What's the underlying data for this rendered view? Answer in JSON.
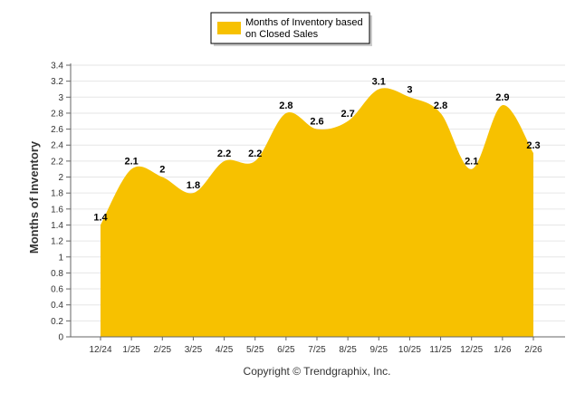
{
  "chart_data": {
    "type": "area",
    "title": "",
    "ylabel": "Months of Inventory",
    "xlabel": "",
    "categories": [
      "12/24",
      "1/25",
      "2/25",
      "3/25",
      "4/25",
      "5/25",
      "6/25",
      "7/25",
      "8/25",
      "9/25",
      "10/25",
      "11/25",
      "12/25",
      "1/26",
      "2/26"
    ],
    "series": [
      {
        "name": "Months of Inventory based on Closed Sales",
        "values": [
          1.4,
          2.1,
          2.0,
          1.8,
          2.2,
          2.2,
          2.8,
          2.6,
          2.7,
          3.1,
          3.0,
          2.8,
          2.1,
          2.9,
          2.3
        ],
        "labels": [
          "1.4",
          "2.1",
          "2",
          "1.8",
          "2.2",
          "2.2",
          "2.8",
          "2.6",
          "2.7",
          "3.1",
          "3",
          "2.8",
          "2.1",
          "2.9",
          "2.3"
        ],
        "color": "#F7C100"
      }
    ],
    "ylim": [
      0,
      3.4
    ],
    "yticks": [
      "0",
      "0.2",
      "0.4",
      "0.6",
      "0.8",
      "1",
      "1.2",
      "1.4",
      "1.6",
      "1.8",
      "2",
      "2.2",
      "2.4",
      "2.6",
      "2.8",
      "3",
      "3.2",
      "3.4"
    ],
    "grid": true,
    "legend_position": "top-center"
  },
  "legend": {
    "line1": "Months of Inventory based",
    "line2": "on Closed Sales"
  },
  "copyright": "Copyright © Trendgraphix, Inc."
}
